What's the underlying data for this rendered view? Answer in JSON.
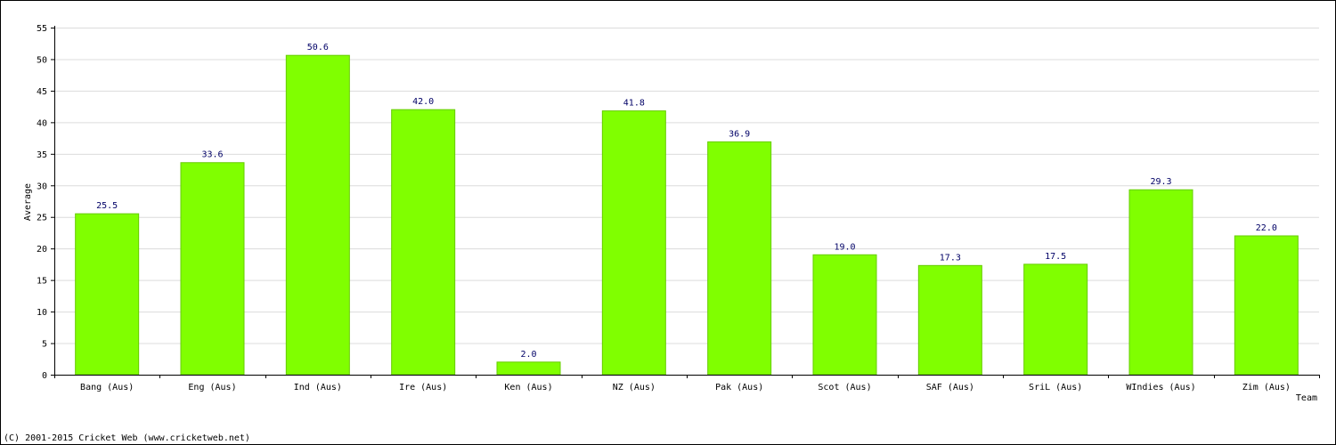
{
  "chart_data": {
    "type": "bar",
    "title": "",
    "xlabel": "Team",
    "ylabel": "Average",
    "ylim": [
      0,
      55
    ],
    "yticks": [
      0,
      5,
      10,
      15,
      20,
      25,
      30,
      35,
      40,
      45,
      50,
      55
    ],
    "grid": true,
    "bar_color": "#80ff00",
    "categories": [
      "Bang (Aus)",
      "Eng (Aus)",
      "Ind (Aus)",
      "Ire (Aus)",
      "Ken (Aus)",
      "NZ (Aus)",
      "Pak (Aus)",
      "Scot (Aus)",
      "SAF (Aus)",
      "SriL (Aus)",
      "WIndies (Aus)",
      "Zim (Aus)"
    ],
    "values": [
      25.5,
      33.6,
      50.6,
      42.0,
      2.0,
      41.8,
      36.9,
      19.0,
      17.3,
      17.5,
      29.3,
      22.0
    ],
    "value_labels": [
      "25.5",
      "33.6",
      "50.6",
      "42.0",
      "2.0",
      "41.8",
      "36.9",
      "19.0",
      "17.3",
      "17.5",
      "29.3",
      "22.0"
    ]
  },
  "footer": {
    "copyright": "(C) 2001-2015 Cricket Web (www.cricketweb.net)"
  }
}
